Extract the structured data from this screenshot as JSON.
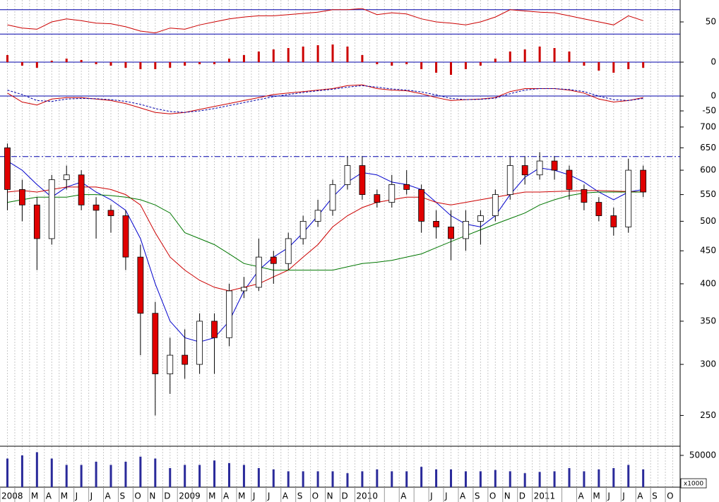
{
  "chart_data": [
    {
      "type": "line",
      "ylim": [
        28,
        86
      ],
      "yticks": [
        50
      ],
      "levels": [
        30,
        70
      ],
      "level_color": "#0000aa",
      "series": [
        {
          "color": "#cc0000",
          "values": [
            45,
            40,
            38,
            50,
            55,
            52,
            48,
            47,
            42,
            35,
            32,
            40,
            38,
            45,
            50,
            55,
            58,
            60,
            60,
            62,
            64,
            66,
            70,
            70,
            72,
            62,
            65,
            63,
            55,
            50,
            48,
            45,
            50,
            58,
            70,
            68,
            66,
            65,
            60,
            55,
            50,
            45,
            60,
            52
          ]
        }
      ]
    },
    {
      "type": "bar",
      "ylim": [
        -22,
        38
      ],
      "yticks": [
        0
      ],
      "levels": [
        0
      ],
      "level_color": "#0000aa",
      "color": "#cc0000",
      "values": [
        10,
        -5,
        -8,
        2,
        5,
        3,
        -3,
        -5,
        -8,
        -10,
        -10,
        -8,
        -5,
        -3,
        -3,
        5,
        10,
        15,
        18,
        20,
        22,
        24,
        25,
        22,
        10,
        -3,
        -5,
        -3,
        -10,
        -15,
        -18,
        -10,
        -5,
        5,
        15,
        18,
        22,
        20,
        15,
        -5,
        -12,
        -15,
        -10,
        -8
      ]
    },
    {
      "type": "line",
      "ylim": [
        -57,
        62
      ],
      "yticks": [
        0,
        -50
      ],
      "levels": [
        0
      ],
      "level_color": "#0000aa",
      "series": [
        {
          "color": "#cc0000",
          "values": [
            10,
            -20,
            -30,
            -10,
            -5,
            -5,
            -10,
            -15,
            -25,
            -40,
            -55,
            -60,
            -55,
            -45,
            -35,
            -25,
            -15,
            -5,
            5,
            10,
            15,
            20,
            25,
            35,
            38,
            25,
            20,
            18,
            8,
            -5,
            -15,
            -12,
            -10,
            -5,
            15,
            25,
            25,
            25,
            20,
            10,
            -10,
            -20,
            -15,
            -5
          ]
        },
        {
          "color": "#0000aa",
          "dashed": true,
          "values": [
            20,
            5,
            -15,
            -18,
            -10,
            -8,
            -9,
            -12,
            -18,
            -28,
            -42,
            -52,
            -55,
            -50,
            -42,
            -32,
            -22,
            -12,
            -2,
            5,
            12,
            18,
            23,
            30,
            35,
            30,
            24,
            20,
            14,
            4,
            -8,
            -12,
            -11,
            -7,
            8,
            20,
            25,
            25,
            22,
            15,
            0,
            -12,
            -15,
            -8
          ]
        }
      ]
    },
    {
      "type": "candlestick",
      "log_scale": true,
      "ylim": [
        224,
        736
      ],
      "yticks": [
        700,
        650,
        600,
        550,
        500,
        450,
        400,
        350,
        300,
        250
      ],
      "up_color": "#ffffff",
      "down_color": "#e00000",
      "reference_line": 630,
      "reference_color": "#0000aa",
      "open": [
        650,
        560,
        530,
        470,
        580,
        590,
        530,
        520,
        510,
        440,
        360,
        290,
        310,
        300,
        350,
        330,
        390,
        395,
        440,
        430,
        470,
        500,
        520,
        570,
        610,
        550,
        535,
        570,
        560,
        500,
        490,
        470,
        500,
        510,
        550,
        610,
        590,
        620,
        600,
        560,
        535,
        510,
        490,
        600
      ],
      "high": [
        660,
        580,
        545,
        590,
        610,
        600,
        545,
        530,
        520,
        460,
        375,
        330,
        340,
        360,
        360,
        400,
        410,
        470,
        450,
        480,
        510,
        540,
        580,
        630,
        630,
        560,
        590,
        600,
        570,
        520,
        520,
        520,
        520,
        560,
        630,
        630,
        640,
        630,
        610,
        570,
        545,
        525,
        625,
        610
      ],
      "low": [
        520,
        500,
        420,
        460,
        560,
        520,
        470,
        480,
        420,
        310,
        250,
        270,
        285,
        290,
        290,
        320,
        380,
        390,
        400,
        420,
        460,
        490,
        510,
        560,
        540,
        525,
        525,
        550,
        480,
        470,
        435,
        450,
        460,
        500,
        540,
        570,
        580,
        580,
        540,
        520,
        500,
        475,
        480,
        545
      ],
      "close": [
        560,
        530,
        470,
        580,
        590,
        530,
        520,
        510,
        440,
        360,
        290,
        310,
        300,
        350,
        330,
        390,
        395,
        440,
        430,
        470,
        500,
        520,
        570,
        610,
        550,
        535,
        570,
        560,
        500,
        490,
        470,
        500,
        510,
        550,
        610,
        590,
        620,
        600,
        560,
        535,
        510,
        490,
        600,
        555
      ],
      "lines": [
        {
          "color": "#0000cc",
          "values": [
            620,
            600,
            570,
            545,
            565,
            575,
            555,
            540,
            520,
            470,
            400,
            350,
            330,
            325,
            330,
            350,
            390,
            420,
            440,
            455,
            480,
            510,
            545,
            575,
            595,
            590,
            575,
            570,
            560,
            535,
            510,
            495,
            490,
            510,
            550,
            585,
            605,
            600,
            590,
            575,
            555,
            540,
            555,
            560
          ]
        },
        {
          "color": "#cc0000",
          "values": [
            555,
            558,
            555,
            560,
            565,
            565,
            565,
            560,
            550,
            530,
            480,
            440,
            420,
            405,
            395,
            390,
            395,
            400,
            410,
            420,
            440,
            460,
            490,
            510,
            525,
            535,
            540,
            545,
            545,
            535,
            530,
            535,
            540,
            545,
            550,
            555,
            555,
            556,
            557,
            558,
            558,
            557,
            556,
            555
          ]
        },
        {
          "color": "#007700",
          "values": [
            535,
            540,
            545,
            545,
            545,
            550,
            550,
            548,
            545,
            540,
            530,
            515,
            480,
            470,
            460,
            445,
            430,
            425,
            420,
            420,
            420,
            420,
            420,
            425,
            430,
            432,
            435,
            440,
            445,
            455,
            465,
            475,
            485,
            495,
            505,
            515,
            530,
            540,
            548,
            553,
            555,
            555,
            555,
            555
          ]
        }
      ]
    },
    {
      "type": "bar",
      "ylim": [
        0,
        64400
      ],
      "yticks": [
        50000
      ],
      "color": "#2a2a9a",
      "unit_label": "x1000",
      "categories": [
        "2008",
        null,
        "M",
        "A",
        "M",
        "J",
        "J",
        "A",
        "S",
        "O",
        "N",
        "D",
        "2009",
        null,
        "M",
        "A",
        "M",
        "J",
        "J",
        "A",
        "S",
        "O",
        "N",
        "D",
        "2010",
        null,
        null,
        "A",
        null,
        "J",
        "J",
        "A",
        "S",
        "O",
        "N",
        "D",
        "2011",
        null,
        null,
        "A",
        "M",
        "J",
        "J",
        "A",
        "S",
        "O"
      ],
      "values": [
        45000,
        50000,
        55000,
        45000,
        35000,
        35000,
        40000,
        35000,
        40000,
        48000,
        45000,
        30000,
        35000,
        35000,
        42000,
        38000,
        35000,
        30000,
        28000,
        25000,
        25000,
        25000,
        25000,
        22000,
        25000,
        28000,
        25000,
        25000,
        32000,
        28000,
        28000,
        25000,
        25000,
        27000,
        25000,
        22000,
        24000,
        25000,
        30000,
        25000,
        28000,
        30000,
        35000,
        28000,
        null,
        null
      ]
    }
  ]
}
